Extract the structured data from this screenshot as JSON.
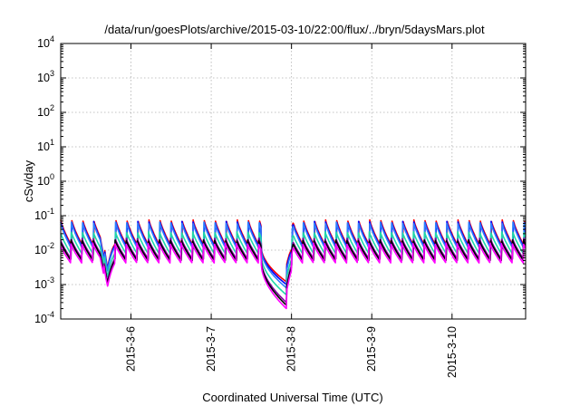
{
  "chart_data": {
    "type": "line",
    "title": "/data/run/goesPlots/archive/2015-03-10/22:00/flux/../bryn/5daysMars.plot",
    "xlabel": "Coordinated Universal Time (UTC)",
    "ylabel": "cSv/day",
    "xlim": [
      "2015-03-05 03:00",
      "2015-03-10 22:00"
    ],
    "yscale": "log",
    "ylim": [
      0.0001,
      10000
    ],
    "grid": true,
    "legend": "none",
    "x_ticks": [
      {
        "value": "2015-03-06 00:00",
        "label": "2015-3-6"
      },
      {
        "value": "2015-03-07 00:00",
        "label": "2015-3-7"
      },
      {
        "value": "2015-03-08 00:00",
        "label": "2015-3-8"
      },
      {
        "value": "2015-03-09 00:00",
        "label": "2015-3-9"
      },
      {
        "value": "2015-03-10 00:00",
        "label": "2015-3-10"
      }
    ],
    "y_ticks": [
      {
        "value": 0.0001,
        "base": "10",
        "exp": "-4"
      },
      {
        "value": 0.001,
        "base": "10",
        "exp": "-3"
      },
      {
        "value": 0.01,
        "base": "10",
        "exp": "-2"
      },
      {
        "value": 0.1,
        "base": "10",
        "exp": "-1"
      },
      {
        "value": 1,
        "base": "10",
        "exp": "0"
      },
      {
        "value": 10,
        "base": "10",
        "exp": "1"
      },
      {
        "value": 100,
        "base": "10",
        "exp": "2"
      },
      {
        "value": 1000,
        "base": "10",
        "exp": "3"
      },
      {
        "value": 10000,
        "base": "10",
        "exp": "4"
      }
    ],
    "series": [
      {
        "color": "#ff0000",
        "peak": 0.075,
        "trough": 0.013,
        "dip_min": 0.0012,
        "early_min": 0.003
      },
      {
        "color": "#0000ff",
        "peak": 0.07,
        "trough": 0.012,
        "dip_min": 0.001,
        "early_min": 0.0028
      },
      {
        "color": "#2f7fff",
        "peak": 0.065,
        "trough": 0.011,
        "dip_min": 0.0008,
        "early_min": 0.0025
      },
      {
        "color": "#20d8a8",
        "peak": 0.035,
        "trough": 0.0075,
        "dip_min": 0.0005,
        "early_min": 0.0017
      },
      {
        "color": "#8000a0",
        "peak": 0.022,
        "trough": 0.0055,
        "dip_min": 0.0003,
        "early_min": 0.0012
      },
      {
        "color": "#000000",
        "peak": 0.02,
        "trough": 0.005,
        "dip_min": 0.00025,
        "early_min": 0.0011
      },
      {
        "color": "#ff00ff",
        "peak": 0.016,
        "trough": 0.0042,
        "dip_min": 0.0002,
        "early_min": 0.0009
      }
    ]
  }
}
